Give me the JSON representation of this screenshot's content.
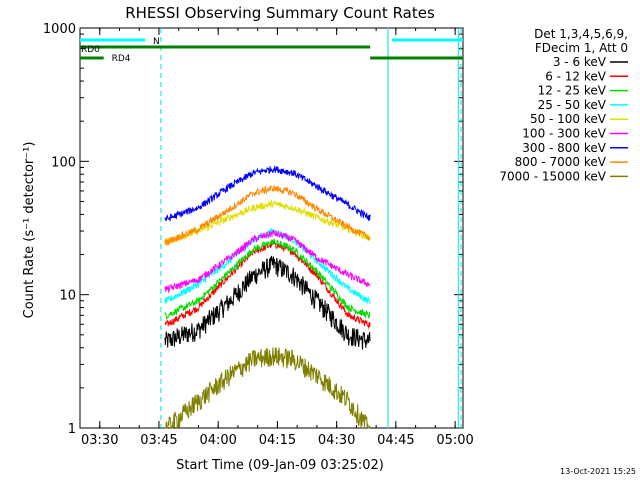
{
  "chart_data": {
    "type": "line",
    "title": "RHESSI Observing Summary Count Rates",
    "xlabel": "Start Time (09-Jan-09 03:25:02)",
    "ylabel": "Count Rate (s⁻¹ detector⁻¹)",
    "x_unit": "minutes after 03:25:02",
    "xlim": [
      0,
      97
    ],
    "ylim": [
      1,
      1000
    ],
    "yscale": "log",
    "x_ticks": [
      {
        "label": "03:30",
        "value": 5
      },
      {
        "label": "03:45",
        "value": 20
      },
      {
        "label": "04:00",
        "value": 35
      },
      {
        "label": "04:15",
        "value": 50
      },
      {
        "label": "04:30",
        "value": 65
      },
      {
        "label": "04:45",
        "value": 80
      },
      {
        "label": "05:00",
        "value": 95
      }
    ],
    "y_ticks": [
      {
        "label": "1",
        "value": 1
      },
      {
        "label": "10",
        "value": 10
      },
      {
        "label": "100",
        "value": 100
      },
      {
        "label": "1000",
        "value": 1000
      }
    ],
    "legend_header": [
      "Det 1,3,4,5,6,9,",
      "FDecim 1, Att 0"
    ],
    "legend_placement": "right",
    "timestamp": "13-Oct-2021 15:25",
    "series": [
      {
        "name": "3 - 6 keV",
        "color": "#000000",
        "peak_x": 49,
        "x": [
          22,
          30,
          38,
          44,
          49,
          54,
          60,
          68,
          73
        ],
        "y": [
          4.5,
          5.5,
          9,
          14,
          17,
          14,
          9,
          5,
          4.5
        ]
      },
      {
        "name": "6 - 12 keV",
        "color": "#ff0000",
        "peak_x": 49,
        "x": [
          22,
          30,
          38,
          44,
          49,
          54,
          60,
          68,
          73
        ],
        "y": [
          6,
          8,
          14,
          21,
          24,
          21,
          14,
          7,
          6
        ]
      },
      {
        "name": "12 - 25 keV",
        "color": "#00dd00",
        "peak_x": 49,
        "x": [
          22,
          30,
          38,
          44,
          49,
          54,
          60,
          68,
          73
        ],
        "y": [
          7,
          9,
          15,
          22,
          25,
          22,
          15,
          8,
          7
        ]
      },
      {
        "name": "25 - 50 keV",
        "color": "#00ffff",
        "peak_x": 49,
        "x": [
          22,
          30,
          38,
          44,
          49,
          54,
          60,
          68,
          73
        ],
        "y": [
          9,
          12,
          18,
          26,
          30,
          26,
          18,
          11,
          9
        ]
      },
      {
        "name": "50 - 100 keV",
        "color": "#e0e000",
        "peak_x": 49,
        "x": [
          22,
          30,
          38,
          44,
          49,
          54,
          60,
          68,
          73
        ],
        "y": [
          25,
          30,
          38,
          45,
          48,
          45,
          38,
          31,
          27
        ]
      },
      {
        "name": "100 - 300 keV",
        "color": "#ff00ff",
        "peak_x": 49,
        "x": [
          22,
          30,
          38,
          44,
          49,
          54,
          60,
          68,
          73
        ],
        "y": [
          11,
          13,
          19,
          26,
          29,
          26,
          19,
          14,
          12
        ]
      },
      {
        "name": "300 - 800 keV",
        "color": "#0000ff",
        "peak_x": 49,
        "x": [
          22,
          30,
          38,
          44,
          49,
          54,
          60,
          68,
          73
        ],
        "y": [
          37,
          45,
          65,
          82,
          88,
          82,
          65,
          47,
          38
        ]
      },
      {
        "name": "800 - 7000 keV",
        "color": "#ff8800",
        "peak_x": 49,
        "x": [
          22,
          30,
          38,
          44,
          49,
          54,
          60,
          68,
          73
        ],
        "y": [
          25,
          31,
          44,
          58,
          63,
          58,
          44,
          32,
          27
        ]
      },
      {
        "name": "7000 - 15000 keV",
        "color": "#808000",
        "peak_x": 49,
        "x": [
          22,
          30,
          38,
          44,
          49,
          54,
          60,
          68,
          73
        ],
        "y": [
          1,
          1.6,
          2.5,
          3.3,
          3.5,
          3.3,
          2.5,
          1.6,
          1
        ]
      }
    ],
    "flags": [
      {
        "label": "RD0",
        "color": "#008000"
      },
      {
        "label": "RD4",
        "color": "#008000"
      },
      {
        "label": "N",
        "color": "#00ffff"
      }
    ]
  }
}
